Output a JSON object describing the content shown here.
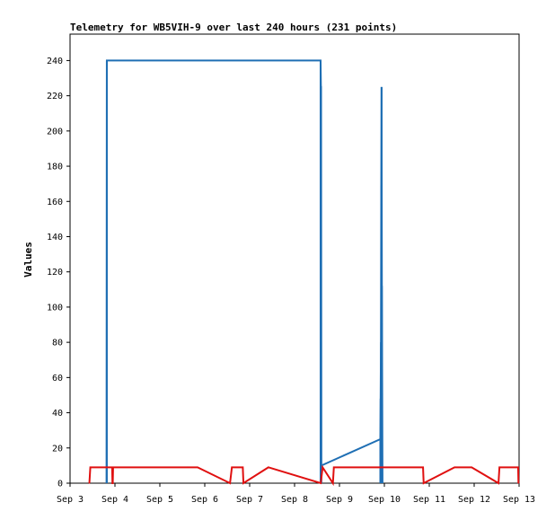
{
  "chart_data": {
    "type": "line",
    "title": "Telemetry for WB5VIH-9 over last 240 hours (231 points)",
    "xlabel": "",
    "ylabel": "Values",
    "x_tick_labels": [
      "Sep 3",
      "Sep 4",
      "Sep 5",
      "Sep 6",
      "Sep 7",
      "Sep 8",
      "Sep 9",
      "Sep 10",
      "Sep 11",
      "Sep 12",
      "Sep 13"
    ],
    "xlim": [
      "Sep 3 00:00",
      "Sep 13 00:00"
    ],
    "y_ticks": [
      0,
      20,
      40,
      60,
      80,
      100,
      120,
      140,
      160,
      180,
      200,
      220,
      240
    ],
    "ylim": [
      0,
      255
    ],
    "grid": false,
    "colors": {
      "blue": "#1f6fb4",
      "red": "#e01010",
      "axis": "#000000"
    },
    "series": [
      {
        "color": "#1f6fb4",
        "style": "spikes",
        "x": [
          "Sep 3 19:30",
          "Sep 3 19:40",
          "Sep 8 13:55",
          "Sep 8 14:05",
          "Sep 8 14:10",
          "Sep 8 14:20",
          "Sep 9 21:50",
          "Sep 9 22:00",
          "Sep 9 22:10",
          "Sep 9 22:20",
          "Sep 9 22:30",
          "Sep 9 22:40",
          "Sep 9 23:00"
        ],
        "values": [
          0,
          240,
          240,
          225,
          225,
          10,
          25,
          48,
          80,
          169,
          225,
          112,
          0
        ]
      },
      {
        "color": "#e01010",
        "style": "line",
        "x": [
          "Sep 3 10:20",
          "Sep 3 10:50",
          "Sep 3 22:30",
          "Sep 3 22:40",
          "Sep 3 22:50",
          "Sep 3 23:00",
          "Sep 5 14:40",
          "Sep 5 14:50",
          "Sep 5 20:10",
          "Sep 6 13:30",
          "Sep 6 14:30",
          "Sep 6 20:20",
          "Sep 6 20:40",
          "Sep 7 10:00",
          "Sep 8 14:00",
          "Sep 8 15:00",
          "Sep 8 20:30",
          "Sep 8 21:00",
          "Sep 9 12:10",
          "Sep 9 12:30",
          "Sep 9 21:30",
          "Sep 9 21:40",
          "Sep 10 20:40",
          "Sep 10 21:00",
          "Sep 11 13:30",
          "Sep 11 14:00",
          "Sep 11 22:40",
          "Sep 12 13:00",
          "Sep 12 13:30",
          "Sep 12 23:30",
          "Sep 12 23:40"
        ],
        "values": [
          0,
          9,
          9,
          0,
          0,
          9,
          9,
          9,
          9,
          0,
          9,
          9,
          0,
          9,
          0,
          9,
          0,
          9,
          9,
          9,
          9,
          9,
          9,
          0,
          9,
          9,
          9,
          0,
          9,
          9,
          0
        ]
      }
    ]
  }
}
